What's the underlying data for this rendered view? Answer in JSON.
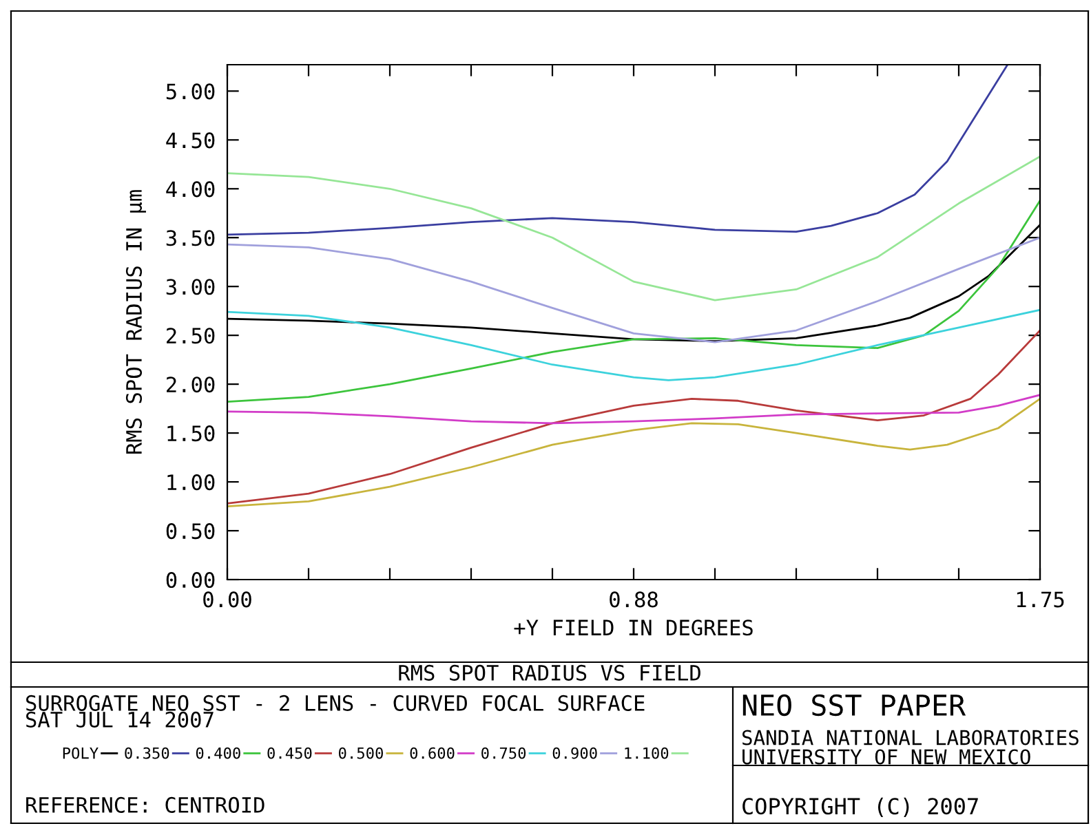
{
  "chart_data": {
    "type": "line",
    "title": "RMS SPOT RADIUS VS FIELD",
    "xlabel": "+Y FIELD IN DEGREES",
    "ylabel": "RMS SPOT RADIUS IN µm",
    "xlim": [
      0,
      1.75
    ],
    "ylim": [
      0,
      5.27
    ],
    "xticks": [
      {
        "value": 0,
        "label": "0.00"
      },
      {
        "value": 0.175,
        "label": null
      },
      {
        "value": 0.35,
        "label": null
      },
      {
        "value": 0.525,
        "label": null
      },
      {
        "value": 0.7,
        "label": null
      },
      {
        "value": 0.875,
        "label": "0.88"
      },
      {
        "value": 1.05,
        "label": null
      },
      {
        "value": 1.225,
        "label": null
      },
      {
        "value": 1.4,
        "label": null
      },
      {
        "value": 1.575,
        "label": null
      },
      {
        "value": 1.75,
        "label": "1.75"
      }
    ],
    "yticks": [
      {
        "value": 0,
        "label": "0.00"
      },
      {
        "value": 0.5,
        "label": "0.50"
      },
      {
        "value": 1,
        "label": "1.00"
      },
      {
        "value": 1.5,
        "label": "1.50"
      },
      {
        "value": 2,
        "label": "2.00"
      },
      {
        "value": 2.5,
        "label": "2.50"
      },
      {
        "value": 3,
        "label": "3.00"
      },
      {
        "value": 3.5,
        "label": "3.50"
      },
      {
        "value": 4,
        "label": "4.00"
      },
      {
        "value": 4.5,
        "label": "4.50"
      },
      {
        "value": 5,
        "label": "5.00"
      }
    ],
    "grid": false,
    "legend": "bottom",
    "marker": "none",
    "line_style": "solid",
    "series": [
      {
        "name": "POLY",
        "color": "#000000",
        "x": [
          0,
          0.175,
          0.35,
          0.525,
          0.7,
          0.875,
          1.05,
          1.225,
          1.4,
          1.47,
          1.575,
          1.64,
          1.75
        ],
        "values": [
          2.67,
          2.65,
          2.62,
          2.58,
          2.52,
          2.46,
          2.44,
          2.47,
          2.6,
          2.68,
          2.9,
          3.11,
          3.63
        ]
      },
      {
        "name": "0.350",
        "color": "#3a3ea0",
        "x": [
          0,
          0.175,
          0.35,
          0.525,
          0.7,
          0.875,
          1.05,
          1.225,
          1.3,
          1.4,
          1.48,
          1.55,
          1.68
        ],
        "values": [
          3.53,
          3.55,
          3.6,
          3.66,
          3.7,
          3.66,
          3.58,
          3.56,
          3.62,
          3.75,
          3.94,
          4.28,
          5.27
        ]
      },
      {
        "name": "0.400",
        "color": "#3cc43c",
        "x": [
          0,
          0.175,
          0.35,
          0.525,
          0.7,
          0.875,
          1.05,
          1.225,
          1.4,
          1.5,
          1.575,
          1.66,
          1.75
        ],
        "values": [
          1.82,
          1.87,
          2.0,
          2.16,
          2.33,
          2.46,
          2.47,
          2.4,
          2.37,
          2.5,
          2.75,
          3.2,
          3.88
        ]
      },
      {
        "name": "0.450",
        "color": "#b83a3a",
        "x": [
          0,
          0.175,
          0.35,
          0.525,
          0.7,
          0.875,
          1.0,
          1.1,
          1.225,
          1.4,
          1.5,
          1.6,
          1.66,
          1.75
        ],
        "values": [
          0.78,
          0.88,
          1.08,
          1.35,
          1.6,
          1.78,
          1.85,
          1.83,
          1.73,
          1.63,
          1.68,
          1.85,
          2.1,
          2.55
        ]
      },
      {
        "name": "0.500",
        "color": "#c8b43c",
        "x": [
          0,
          0.175,
          0.35,
          0.525,
          0.7,
          0.875,
          1.0,
          1.1,
          1.225,
          1.4,
          1.47,
          1.55,
          1.66,
          1.75
        ],
        "values": [
          0.75,
          0.8,
          0.95,
          1.15,
          1.38,
          1.53,
          1.6,
          1.59,
          1.5,
          1.37,
          1.33,
          1.38,
          1.55,
          1.85
        ]
      },
      {
        "name": "0.600",
        "color": "#d23cc8",
        "x": [
          0,
          0.175,
          0.35,
          0.525,
          0.7,
          0.875,
          1.05,
          1.225,
          1.4,
          1.575,
          1.66,
          1.75
        ],
        "values": [
          1.72,
          1.71,
          1.67,
          1.62,
          1.6,
          1.62,
          1.65,
          1.69,
          1.7,
          1.71,
          1.78,
          1.89
        ]
      },
      {
        "name": "0.750",
        "color": "#3cd2dc",
        "x": [
          0,
          0.175,
          0.35,
          0.525,
          0.7,
          0.875,
          0.95,
          1.05,
          1.225,
          1.4,
          1.575,
          1.75
        ],
        "values": [
          2.74,
          2.7,
          2.58,
          2.4,
          2.2,
          2.07,
          2.04,
          2.07,
          2.2,
          2.4,
          2.58,
          2.76
        ]
      },
      {
        "name": "0.900",
        "color": "#a0a0dc",
        "x": [
          0,
          0.175,
          0.35,
          0.525,
          0.7,
          0.875,
          1.05,
          1.225,
          1.4,
          1.575,
          1.75
        ],
        "values": [
          3.43,
          3.4,
          3.28,
          3.05,
          2.78,
          2.52,
          2.43,
          2.55,
          2.85,
          3.18,
          3.5
        ]
      },
      {
        "name": "1.100",
        "color": "#96e696",
        "x": [
          0,
          0.175,
          0.35,
          0.525,
          0.7,
          0.875,
          1.05,
          1.225,
          1.4,
          1.575,
          1.75
        ],
        "values": [
          4.16,
          4.12,
          4.0,
          3.8,
          3.5,
          3.05,
          2.86,
          2.97,
          3.3,
          3.85,
          4.33
        ]
      }
    ],
    "annotations": [
      "SURROGATE NEO SST - 2 LENS - CURVED FOCAL SURFACE",
      "SAT JUL 14 2007",
      "REFERENCE: CENTROID",
      "NEO SST PAPER",
      "SANDIA NATIONAL LABORATORIES",
      "UNIVERSITY OF NEW MEXICO",
      "COPYRIGHT (C) 2007"
    ]
  }
}
